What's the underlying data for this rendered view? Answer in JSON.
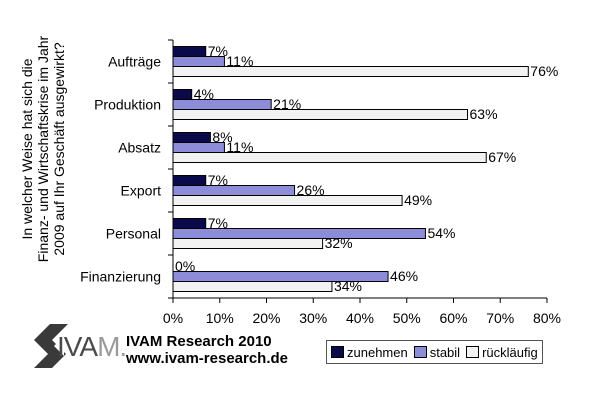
{
  "colors": {
    "zunehmen": "#0a0a4a",
    "stabil": "#8c8cd8",
    "ruecklaeufig": "#f2f2f2"
  },
  "chart_data": {
    "type": "bar",
    "orientation": "horizontal",
    "ylabel": "In welcher Weise hat sich die Finanz- und Wirtschaftskrise im Jahr 2009 auf Ihr Geschäft ausgewirkt?",
    "ylabel_lines": [
      "In welcher Weise hat sich die",
      "Finanz- und Wirtschaftskrise im Jahr",
      "2009 auf Ihr Geschäft ausgewirkt?"
    ],
    "categories": [
      "Aufträge",
      "Produktion",
      "Absatz",
      "Export",
      "Personal",
      "Finanzierung"
    ],
    "series": [
      {
        "name": "zunehmen",
        "values": [
          7,
          4,
          8,
          7,
          7,
          0
        ],
        "labels": [
          "7%",
          "4%",
          "8%",
          "7%",
          "7%",
          "0%"
        ]
      },
      {
        "name": "stabil",
        "values": [
          11,
          21,
          11,
          26,
          54,
          46
        ],
        "labels": [
          "11%",
          "21%",
          "11%",
          "26%",
          "54%",
          "46%"
        ]
      },
      {
        "name": "rückläufig",
        "values": [
          76,
          63,
          67,
          49,
          32,
          34
        ],
        "labels": [
          "76%",
          "63%",
          "67%",
          "49%",
          "32%",
          "34%"
        ]
      }
    ],
    "xlim": [
      0,
      80
    ],
    "xticks": [
      0,
      10,
      20,
      30,
      40,
      50,
      60,
      70,
      80
    ],
    "xtick_labels": [
      "0%",
      "10%",
      "20%",
      "30%",
      "40%",
      "50%",
      "60%",
      "70%",
      "80%"
    ],
    "grid": false,
    "legend": "bottom-right"
  },
  "logo": {
    "mark": "IVA",
    "mark_end": "M."
  },
  "company": {
    "name": "IVAM Research 2010",
    "url": "www.ivam-research.de"
  },
  "legend": {
    "items": [
      "zunehmen",
      "stabil",
      "rückläufig"
    ]
  }
}
